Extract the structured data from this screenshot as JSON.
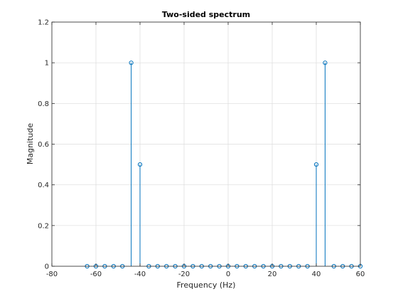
{
  "chart_data": {
    "type": "stem",
    "title": "Two-sided spectrum",
    "xlabel": "Frequency (Hz)",
    "ylabel": "Magnitude",
    "xlim": [
      -80,
      60
    ],
    "ylim": [
      0,
      1.2
    ],
    "xticks": [
      -80,
      -60,
      -40,
      -20,
      0,
      20,
      40,
      60
    ],
    "yticks": [
      0,
      0.2,
      0.4,
      0.6,
      0.8,
      1,
      1.2
    ],
    "xtick_labels": [
      "-80",
      "-60",
      "-40",
      "-20",
      "0",
      "20",
      "40",
      "60"
    ],
    "ytick_labels": [
      "0",
      "0.2",
      "0.4",
      "0.6",
      "0.8",
      "1",
      "1.2"
    ],
    "grid": true,
    "color": "#0072BD",
    "x": [
      -64,
      -60,
      -56,
      -52,
      -48,
      -44,
      -40,
      -36,
      -32,
      -28,
      -24,
      -20,
      -16,
      -12,
      -8,
      -4,
      0,
      4,
      8,
      12,
      16,
      20,
      24,
      28,
      32,
      36,
      40,
      44,
      48,
      52,
      56,
      60
    ],
    "y": [
      0,
      0,
      0,
      0,
      0,
      1,
      0.5,
      0,
      0,
      0,
      0,
      0,
      0,
      0,
      0,
      0,
      0,
      0,
      0,
      0,
      0,
      0,
      0,
      0,
      0,
      0,
      0.5,
      1,
      0,
      0,
      0,
      0
    ]
  }
}
